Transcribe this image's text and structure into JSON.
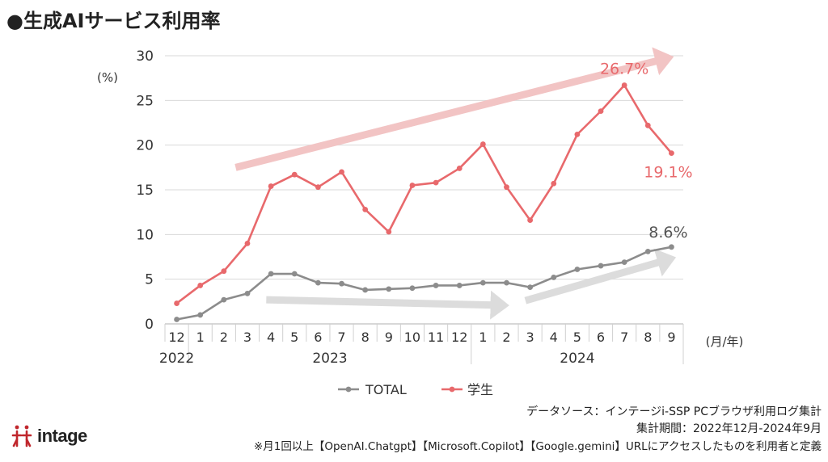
{
  "title": "●生成AIサービス利用率",
  "chart_data": {
    "type": "line",
    "title": "生成AIサービス利用率",
    "ylabel": "(%)",
    "xlabel": "(月/年)",
    "ylim": [
      0,
      30
    ],
    "yticks": [
      "0",
      "5",
      "10",
      "15",
      "20",
      "25",
      "30"
    ],
    "grid": true,
    "categories": [
      "12",
      "1",
      "2",
      "3",
      "4",
      "5",
      "6",
      "7",
      "8",
      "9",
      "10",
      "11",
      "12",
      "1",
      "2",
      "3",
      "4",
      "5",
      "6",
      "7",
      "8",
      "9"
    ],
    "years": [
      {
        "label": "2022",
        "from": 0,
        "to": 0
      },
      {
        "label": "2023",
        "from": 1,
        "to": 12
      },
      {
        "label": "2024",
        "from": 13,
        "to": 21
      }
    ],
    "series": [
      {
        "name": "学生",
        "color": "#e8696c",
        "values": [
          2.3,
          4.3,
          5.9,
          9.0,
          15.4,
          16.7,
          15.3,
          17.0,
          12.8,
          10.3,
          15.5,
          15.8,
          17.4,
          20.1,
          15.3,
          11.6,
          15.7,
          21.2,
          23.8,
          26.7,
          22.2,
          19.1
        ]
      },
      {
        "name": "TOTAL",
        "color": "#8c8c8c",
        "values": [
          0.5,
          1.0,
          2.7,
          3.4,
          5.6,
          5.6,
          4.6,
          4.5,
          3.8,
          3.9,
          4.0,
          4.3,
          4.3,
          4.6,
          4.6,
          4.1,
          5.2,
          6.1,
          6.5,
          6.9,
          8.1,
          8.6
        ]
      }
    ],
    "annotations": [
      {
        "text": "26.7%",
        "series": "学生",
        "index": 19,
        "color": "#e8696c"
      },
      {
        "text": "19.1%",
        "series": "学生",
        "index": 21,
        "color": "#e8696c"
      },
      {
        "text": "8.6%",
        "series": "TOTAL",
        "index": 21,
        "color": "#555555"
      }
    ],
    "trend_arrows": [
      {
        "from": [
          3.0,
          17.5
        ],
        "to": [
          21.0,
          29.5
        ],
        "color": "#f2c4c4"
      },
      {
        "from": [
          4.3,
          2.7
        ],
        "to": [
          14.0,
          2.1
        ],
        "color": "#dcdcdc"
      },
      {
        "from": [
          15.3,
          2.6
        ],
        "to": [
          21.1,
          7.0
        ],
        "color": "#dcdcdc"
      }
    ],
    "legend": [
      {
        "name": "TOTAL",
        "color": "#8c8c8c"
      },
      {
        "name": "学生",
        "color": "#e8696c"
      }
    ]
  },
  "notes": {
    "source": "データソース：インテージi-SSP PCブラウザ利用ログ集計",
    "period": "集計期間：2022年12月-2024年9月",
    "definition": "※月1回以上【OpenAI.Chatgpt】【Microsoft.Copilot】【Google.gemini】URLにアクセスしたものを利用者と定義"
  },
  "brand": {
    "name": "intage",
    "color": "#c0272d"
  }
}
